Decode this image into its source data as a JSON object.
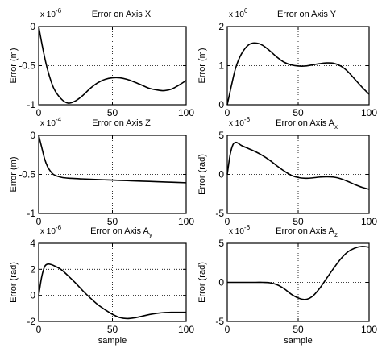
{
  "chart_data": [
    {
      "type": "line",
      "title": "Error on Axis X",
      "xlabel": "",
      "ylabel": "Error (m)",
      "exponent": "-6",
      "xlim": [
        0,
        100
      ],
      "ylim": [
        -1,
        0
      ],
      "xticks": [
        0,
        50,
        100
      ],
      "yticks": [
        -1,
        -0.5,
        0
      ],
      "ytick_labels": [
        "-1",
        "-0.5",
        "0"
      ],
      "x": [
        0,
        3,
        6,
        10,
        15,
        20,
        25,
        30,
        35,
        40,
        45,
        50,
        55,
        60,
        65,
        70,
        75,
        80,
        85,
        90,
        95,
        100
      ],
      "values": [
        0,
        -0.3,
        -0.55,
        -0.78,
        -0.92,
        -0.98,
        -0.95,
        -0.88,
        -0.79,
        -0.72,
        -0.675,
        -0.655,
        -0.655,
        -0.675,
        -0.71,
        -0.75,
        -0.79,
        -0.81,
        -0.82,
        -0.8,
        -0.75,
        -0.69
      ]
    },
    {
      "type": "line",
      "title": "Error on Axis Y",
      "xlabel": "",
      "ylabel": "Error (m)",
      "exponent": "6",
      "xlim": [
        0,
        100
      ],
      "ylim": [
        0,
        2
      ],
      "xticks": [
        0,
        50,
        100
      ],
      "yticks": [
        0,
        1,
        2
      ],
      "ytick_labels": [
        "0",
        "1",
        "2"
      ],
      "x": [
        0,
        3,
        6,
        10,
        15,
        20,
        25,
        30,
        35,
        40,
        45,
        50,
        55,
        60,
        65,
        70,
        75,
        80,
        85,
        90,
        95,
        100
      ],
      "values": [
        0,
        0.5,
        0.95,
        1.3,
        1.53,
        1.58,
        1.52,
        1.38,
        1.22,
        1.09,
        1.02,
        0.99,
        0.99,
        1.02,
        1.05,
        1.07,
        1.06,
        0.99,
        0.85,
        0.65,
        0.45,
        0.27
      ]
    },
    {
      "type": "line",
      "title": "Error on Axis Z",
      "xlabel": "",
      "ylabel": "Error (m)",
      "exponent": "-4",
      "xlim": [
        0,
        100
      ],
      "ylim": [
        -1,
        0
      ],
      "xticks": [
        0,
        50,
        100
      ],
      "yticks": [
        -1,
        -0.5,
        0
      ],
      "ytick_labels": [
        "-1",
        "-0.5",
        "0"
      ],
      "x": [
        0,
        2,
        4,
        6,
        8,
        10,
        13,
        16,
        20,
        30,
        40,
        50,
        60,
        70,
        80,
        90,
        100
      ],
      "values": [
        0,
        -0.15,
        -0.3,
        -0.4,
        -0.46,
        -0.5,
        -0.525,
        -0.54,
        -0.548,
        -0.558,
        -0.566,
        -0.573,
        -0.58,
        -0.587,
        -0.593,
        -0.6,
        -0.607
      ]
    },
    {
      "type": "line",
      "title": "Error on Axis A",
      "title_subscript": "x",
      "xlabel": "",
      "ylabel": "Error (rad)",
      "exponent": "-6",
      "xlim": [
        0,
        100
      ],
      "ylim": [
        -5,
        5
      ],
      "xticks": [
        0,
        50,
        100
      ],
      "yticks": [
        -5,
        0,
        5
      ],
      "ytick_labels": [
        "-5",
        "0",
        "5"
      ],
      "x": [
        0,
        2,
        4,
        6,
        8,
        10,
        15,
        20,
        25,
        30,
        35,
        40,
        45,
        50,
        55,
        60,
        65,
        70,
        75,
        80,
        85,
        90,
        95,
        100
      ],
      "values": [
        0,
        2.5,
        3.8,
        4.1,
        3.95,
        3.7,
        3.3,
        2.9,
        2.4,
        1.8,
        1.1,
        0.45,
        -0.1,
        -0.4,
        -0.5,
        -0.45,
        -0.35,
        -0.3,
        -0.35,
        -0.55,
        -0.9,
        -1.3,
        -1.65,
        -1.9
      ]
    },
    {
      "type": "line",
      "title": "Error on Axis A",
      "title_subscript": "y",
      "xlabel": "sample",
      "ylabel": "Error (rad)",
      "exponent": "-6",
      "xlim": [
        0,
        100
      ],
      "ylim": [
        -2,
        4
      ],
      "xticks": [
        0,
        50,
        100
      ],
      "yticks": [
        -2,
        0,
        2,
        4
      ],
      "ytick_labels": [
        "-2",
        "0",
        "2",
        "4"
      ],
      "x": [
        0,
        2,
        4,
        6,
        8,
        10,
        15,
        20,
        25,
        30,
        35,
        40,
        45,
        50,
        55,
        60,
        65,
        70,
        75,
        80,
        85,
        90,
        95,
        100
      ],
      "values": [
        0,
        1.4,
        2.2,
        2.4,
        2.38,
        2.3,
        2.0,
        1.5,
        0.95,
        0.35,
        -0.2,
        -0.7,
        -1.1,
        -1.45,
        -1.7,
        -1.78,
        -1.72,
        -1.6,
        -1.47,
        -1.38,
        -1.32,
        -1.3,
        -1.3,
        -1.3
      ]
    },
    {
      "type": "line",
      "title": "Error on Axis A",
      "title_subscript": "z",
      "xlabel": "sample",
      "ylabel": "Error (rad)",
      "exponent": "-6",
      "xlim": [
        0,
        100
      ],
      "ylim": [
        -5,
        5
      ],
      "xticks": [
        0,
        50,
        100
      ],
      "yticks": [
        -5,
        0,
        5
      ],
      "ytick_labels": [
        "-5",
        "0",
        "5"
      ],
      "x": [
        0,
        10,
        20,
        25,
        30,
        35,
        40,
        45,
        50,
        55,
        60,
        65,
        70,
        75,
        80,
        85,
        90,
        95,
        100
      ],
      "values": [
        0,
        0,
        0,
        0,
        -0.05,
        -0.3,
        -0.8,
        -1.5,
        -2.0,
        -2.2,
        -1.8,
        -0.8,
        0.5,
        1.8,
        3.0,
        3.9,
        4.4,
        4.6,
        4.5
      ]
    }
  ]
}
